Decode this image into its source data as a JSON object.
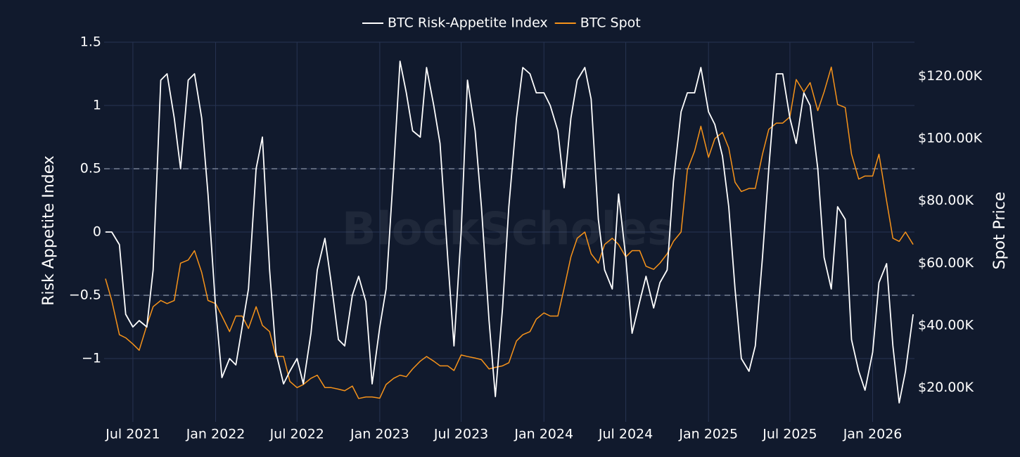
{
  "chart_data": {
    "type": "line",
    "watermark": "BlockScholes",
    "y_label": "Risk Appetite Index",
    "y2_label": "Spot Price",
    "legend": "top",
    "grid": true,
    "reference_lines": [
      0.5,
      -0.5
    ],
    "xlim": [
      "2021-04-28",
      "2026-04-04"
    ],
    "xticks": [
      {
        "value": "2021-07-01",
        "label": "Jul 2021"
      },
      {
        "value": "2022-01-01",
        "label": "Jan 2022"
      },
      {
        "value": "2022-07-01",
        "label": "Jul 2022"
      },
      {
        "value": "2023-01-01",
        "label": "Jan 2023"
      },
      {
        "value": "2023-07-01",
        "label": "Jul 2023"
      },
      {
        "value": "2024-01-01",
        "label": "Jan 2024"
      },
      {
        "value": "2024-07-01",
        "label": "Jul 2024"
      },
      {
        "value": "2025-01-01",
        "label": "Jan 2025"
      },
      {
        "value": "2025-07-01",
        "label": "Jul 2025"
      },
      {
        "value": "2026-01-01",
        "label": "Jan 2026"
      }
    ],
    "ylim": [
      -1.5,
      1.5
    ],
    "yticks": [
      {
        "value": -1,
        "label": "−1"
      },
      {
        "value": -0.5,
        "label": "−0.5"
      },
      0,
      0.5,
      1,
      1.5
    ],
    "y2lim": [
      9000,
      131000
    ],
    "y2ticks": [
      {
        "value": 20000,
        "label": "$20.00K"
      },
      {
        "value": 40000,
        "label": "$40.00K"
      },
      {
        "value": 60000,
        "label": "$60.00K"
      },
      {
        "value": 80000,
        "label": "$80.00K"
      },
      {
        "value": 100000,
        "label": "$100.00K"
      },
      {
        "value": 120000,
        "label": "$120.00K"
      }
    ],
    "x": [
      "2021-05-01",
      "2021-05-15",
      "2021-06-01",
      "2021-06-15",
      "2021-07-01",
      "2021-07-15",
      "2021-08-01",
      "2021-08-15",
      "2021-09-01",
      "2021-09-15",
      "2021-10-01",
      "2021-10-15",
      "2021-11-01",
      "2021-11-15",
      "2021-12-01",
      "2021-12-15",
      "2022-01-01",
      "2022-01-15",
      "2022-02-01",
      "2022-02-15",
      "2022-03-01",
      "2022-03-15",
      "2022-04-01",
      "2022-04-15",
      "2022-05-01",
      "2022-05-15",
      "2022-06-01",
      "2022-06-15",
      "2022-07-01",
      "2022-07-15",
      "2022-08-01",
      "2022-08-15",
      "2022-09-01",
      "2022-09-15",
      "2022-10-01",
      "2022-10-15",
      "2022-11-01",
      "2022-11-15",
      "2022-12-01",
      "2022-12-15",
      "2023-01-01",
      "2023-01-15",
      "2023-02-01",
      "2023-02-15",
      "2023-03-01",
      "2023-03-15",
      "2023-04-01",
      "2023-04-15",
      "2023-05-01",
      "2023-05-15",
      "2023-06-01",
      "2023-06-15",
      "2023-07-01",
      "2023-07-15",
      "2023-08-01",
      "2023-08-15",
      "2023-09-01",
      "2023-09-15",
      "2023-10-01",
      "2023-10-15",
      "2023-11-01",
      "2023-11-15",
      "2023-12-01",
      "2023-12-15",
      "2024-01-01",
      "2024-01-15",
      "2024-02-01",
      "2024-02-15",
      "2024-03-01",
      "2024-03-15",
      "2024-04-01",
      "2024-04-15",
      "2024-05-01",
      "2024-05-15",
      "2024-06-01",
      "2024-06-15",
      "2024-07-01",
      "2024-07-15",
      "2024-08-01",
      "2024-08-15",
      "2024-09-01",
      "2024-09-15",
      "2024-10-01",
      "2024-10-15",
      "2024-11-01",
      "2024-11-15",
      "2024-12-01",
      "2024-12-15",
      "2025-01-01",
      "2025-01-15",
      "2025-02-01",
      "2025-02-15",
      "2025-03-01",
      "2025-03-15",
      "2025-04-01",
      "2025-04-15",
      "2025-05-01",
      "2025-05-15",
      "2025-06-01",
      "2025-06-15",
      "2025-07-01",
      "2025-07-15",
      "2025-08-01",
      "2025-08-15",
      "2025-09-01",
      "2025-09-15",
      "2025-10-01",
      "2025-10-15",
      "2025-11-01",
      "2025-11-15",
      "2025-12-01",
      "2025-12-15",
      "2026-01-01",
      "2026-01-15",
      "2026-02-01",
      "2026-02-15",
      "2026-03-01",
      "2026-03-15",
      "2026-04-01"
    ],
    "series": [
      {
        "name": "BTC Risk-Appetite Index",
        "color": "#ffffff",
        "values": [
          0,
          0,
          -0.1,
          -0.65,
          -0.75,
          -0.7,
          -0.75,
          -0.3,
          1.2,
          1.25,
          0.9,
          0.5,
          1.2,
          1.25,
          0.9,
          0.3,
          -0.6,
          -1.15,
          -1.0,
          -1.05,
          -0.75,
          -0.45,
          0.5,
          0.75,
          -0.3,
          -0.95,
          -1.2,
          -1.1,
          -1.0,
          -1.2,
          -0.8,
          -0.3,
          -0.05,
          -0.4,
          -0.85,
          -0.9,
          -0.5,
          -0.35,
          -0.55,
          -1.2,
          -0.75,
          -0.45,
          0.5,
          1.35,
          1.1,
          0.8,
          0.75,
          1.3,
          1.0,
          0.7,
          -0.2,
          -0.9,
          0.0,
          1.2,
          0.8,
          0.2,
          -0.7,
          -1.3,
          -0.6,
          0.2,
          0.9,
          1.3,
          1.25,
          1.1,
          1.1,
          1.0,
          0.8,
          0.35,
          0.9,
          1.2,
          1.3,
          1.05,
          0.1,
          -0.3,
          -0.45,
          0.3,
          -0.2,
          -0.8,
          -0.55,
          -0.35,
          -0.6,
          -0.4,
          -0.3,
          0.4,
          0.95,
          1.1,
          1.1,
          1.3,
          0.95,
          0.85,
          0.6,
          0.2,
          -0.45,
          -1.0,
          -1.1,
          -0.9,
          -0.2,
          0.5,
          1.25,
          1.25,
          0.9,
          0.7,
          1.1,
          1.0,
          0.5,
          -0.2,
          -0.45,
          0.2,
          0.1,
          -0.85,
          -1.1,
          -1.25,
          -0.95,
          -0.4,
          -0.25,
          -0.9,
          -1.35,
          -1.1,
          -0.65
        ]
      },
      {
        "name": "BTC Spot",
        "color": "#f7931a",
        "axis": "y2",
        "values": [
          55000,
          48000,
          37000,
          36000,
          34000,
          32000,
          40000,
          46000,
          48000,
          47000,
          48000,
          60000,
          61000,
          64000,
          57000,
          48000,
          47000,
          43000,
          38000,
          43000,
          43000,
          39000,
          46000,
          40000,
          38000,
          30000,
          30000,
          22000,
          20000,
          21000,
          23000,
          24000,
          20000,
          20000,
          19500,
          19000,
          20500,
          16500,
          17000,
          17000,
          16600,
          21000,
          23000,
          24000,
          23500,
          26000,
          28500,
          30000,
          28500,
          27000,
          27000,
          25500,
          30500,
          30000,
          29500,
          29000,
          26000,
          26500,
          27000,
          28000,
          35000,
          37000,
          38000,
          42000,
          44000,
          43000,
          43000,
          52000,
          62000,
          68000,
          70000,
          63000,
          60000,
          66000,
          68000,
          66000,
          62000,
          64000,
          64000,
          59000,
          58000,
          60000,
          63000,
          67000,
          70000,
          90000,
          96000,
          104000,
          94000,
          100000,
          102000,
          97000,
          86000,
          83000,
          84000,
          84000,
          95000,
          103000,
          105000,
          105000,
          107000,
          119000,
          115000,
          118000,
          109000,
          115000,
          123000,
          111000,
          110000,
          95000,
          87000,
          88000,
          88000,
          95000,
          80000,
          68000,
          67000,
          70000,
          66000
        ]
      }
    ]
  }
}
